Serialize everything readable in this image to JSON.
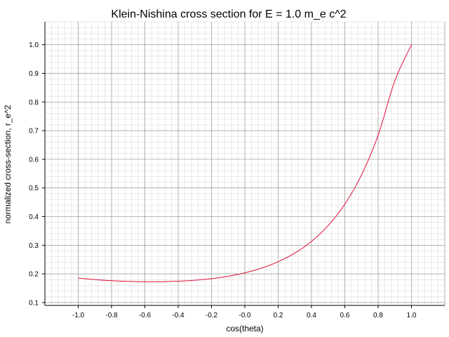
{
  "chart_data": {
    "type": "line",
    "title": "Klein-Nishina cross section for E = 1.0 m_e c^2",
    "xlabel": "cos(theta)",
    "ylabel": "normalized cross-section, r_e^2",
    "xlim": [
      -1.2,
      1.2
    ],
    "ylim": [
      0.09,
      1.08
    ],
    "grid": true,
    "minor_grid": true,
    "x_ticks": [
      -1.0,
      -0.8,
      -0.6,
      -0.4,
      -0.2,
      0.0,
      0.2,
      0.4,
      0.6,
      0.8,
      1.0
    ],
    "x_tick_labels": [
      "-1.0",
      "-0.8",
      "-0.6",
      "-0.4",
      "-0.2",
      "-0.0",
      "0.2",
      "0.4",
      "0.6",
      "0.8",
      "1.0"
    ],
    "y_ticks": [
      0.1,
      0.2,
      0.3,
      0.4,
      0.5,
      0.6,
      0.7,
      0.8,
      0.9,
      1.0
    ],
    "y_tick_labels": [
      "0.1",
      "0.2",
      "0.3",
      "0.4",
      "0.5",
      "0.6",
      "0.7",
      "0.8",
      "0.9",
      "1.0"
    ],
    "line_color": "#e0103a",
    "series": [
      {
        "x": [
          -1.0,
          -0.9,
          -0.8,
          -0.7,
          -0.6,
          -0.5,
          -0.4,
          -0.3,
          -0.2,
          -0.1,
          0.0,
          0.1,
          0.2,
          0.3,
          0.4,
          0.5,
          0.6,
          0.7,
          0.8,
          0.9,
          1.0
        ],
        "values": [
          0.1852,
          0.1802,
          0.1765,
          0.174,
          0.1727,
          0.1728,
          0.1744,
          0.1778,
          0.1834,
          0.1918,
          0.2037,
          0.2201,
          0.2424,
          0.2726,
          0.3134,
          0.3686,
          0.4434,
          0.5451,
          0.6838,
          0.8737,
          1.0
        ]
      }
    ]
  }
}
